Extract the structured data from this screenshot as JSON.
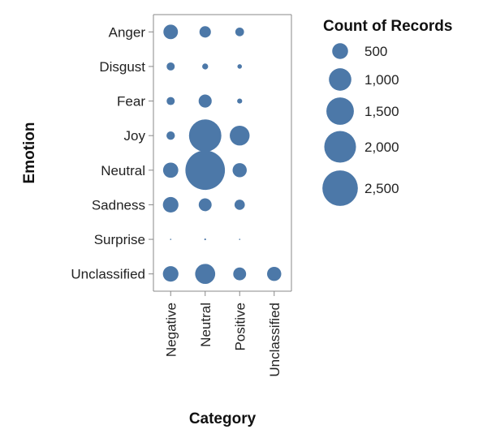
{
  "chart_data": {
    "type": "scatter",
    "mark": "bubble",
    "xlabel": "Category",
    "ylabel": "Emotion",
    "x_categories": [
      "Negative",
      "Neutral",
      "Positive",
      "Unclassified"
    ],
    "y_categories": [
      "Anger",
      "Disgust",
      "Fear",
      "Joy",
      "Neutral",
      "Sadness",
      "Surprise",
      "Unclassified"
    ],
    "size_field": "Count of Records",
    "points": [
      {
        "x": "Negative",
        "y": "Anger",
        "size": 420
      },
      {
        "x": "Neutral",
        "y": "Anger",
        "size": 260
      },
      {
        "x": "Positive",
        "y": "Anger",
        "size": 150
      },
      {
        "x": "Negative",
        "y": "Disgust",
        "size": 130
      },
      {
        "x": "Neutral",
        "y": "Disgust",
        "size": 70
      },
      {
        "x": "Positive",
        "y": "Disgust",
        "size": 40
      },
      {
        "x": "Negative",
        "y": "Fear",
        "size": 130
      },
      {
        "x": "Neutral",
        "y": "Fear",
        "size": 340
      },
      {
        "x": "Positive",
        "y": "Fear",
        "size": 50
      },
      {
        "x": "Negative",
        "y": "Joy",
        "size": 140
      },
      {
        "x": "Neutral",
        "y": "Joy",
        "size": 2080
      },
      {
        "x": "Positive",
        "y": "Joy",
        "size": 780
      },
      {
        "x": "Negative",
        "y": "Neutral",
        "size": 460
      },
      {
        "x": "Neutral",
        "y": "Neutral",
        "size": 3100
      },
      {
        "x": "Positive",
        "y": "Neutral",
        "size": 400
      },
      {
        "x": "Negative",
        "y": "Sadness",
        "size": 480
      },
      {
        "x": "Neutral",
        "y": "Sadness",
        "size": 330
      },
      {
        "x": "Positive",
        "y": "Sadness",
        "size": 210
      },
      {
        "x": "Negative",
        "y": "Surprise",
        "size": 3
      },
      {
        "x": "Neutral",
        "y": "Surprise",
        "size": 6
      },
      {
        "x": "Positive",
        "y": "Surprise",
        "size": 3
      },
      {
        "x": "Negative",
        "y": "Unclassified",
        "size": 480
      },
      {
        "x": "Neutral",
        "y": "Unclassified",
        "size": 800
      },
      {
        "x": "Positive",
        "y": "Unclassified",
        "size": 330
      },
      {
        "x": "Unclassified",
        "y": "Unclassified",
        "size": 400
      }
    ],
    "legend": {
      "title": "Count of Records",
      "placement": "right",
      "entries": [
        {
          "label": "500",
          "value": 500
        },
        {
          "label": "1,000",
          "value": 1000
        },
        {
          "label": "1,500",
          "value": 1500
        },
        {
          "label": "2,000",
          "value": 2000
        },
        {
          "label": "2,500",
          "value": 2500
        }
      ]
    },
    "grid": false,
    "colors": {
      "mark": "#4c78a8",
      "axis": "#888888"
    }
  }
}
